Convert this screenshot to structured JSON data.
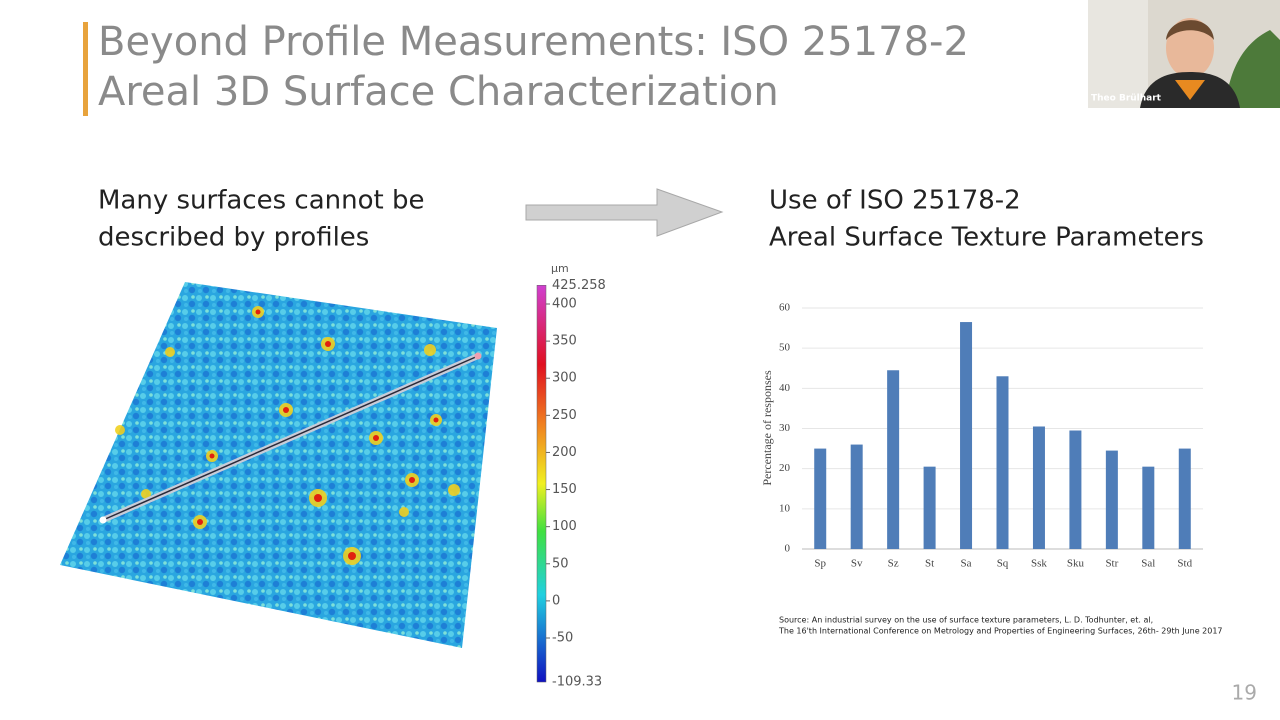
{
  "slide": {
    "title": [
      "Beyond Profile Measurements: ISO 25178-2",
      "Areal 3D Surface Characterization"
    ],
    "left_text": [
      "Many surfaces cannot be",
      "described by profiles"
    ],
    "right_text": [
      "Use of ISO 25178-2",
      "Areal Surface Texture Parameters"
    ],
    "source": [
      "Source: An industrial survey on the use of surface texture parameters, L. D. Todhunter, et. al,",
      "The 16'th International Conference on Metrology and Properties of Engineering Surfaces, 26th- 29th June 2017"
    ],
    "page_number": "19",
    "webcam_name": "Theo Brülhart"
  },
  "colorbar": {
    "unit": "µm",
    "max": 425.258,
    "min": -109.33,
    "ticks": [
      400,
      350,
      300,
      250,
      200,
      150,
      100,
      50,
      0,
      -50
    ]
  },
  "chart_data": {
    "type": "bar",
    "ylabel": "Percentage of responses",
    "categories": [
      "Sp",
      "Sv",
      "Sz",
      "St",
      "Sa",
      "Sq",
      "Ssk",
      "Sku",
      "Str",
      "Sal",
      "Std"
    ],
    "values": [
      25,
      26,
      44.5,
      20.5,
      56.5,
      43,
      30.5,
      29.5,
      24.5,
      20.5,
      25
    ],
    "color": "#4f7db8",
    "ylim": [
      0,
      60
    ],
    "yticks": [
      0,
      10,
      20,
      30,
      40,
      50,
      60
    ],
    "grid": true
  }
}
